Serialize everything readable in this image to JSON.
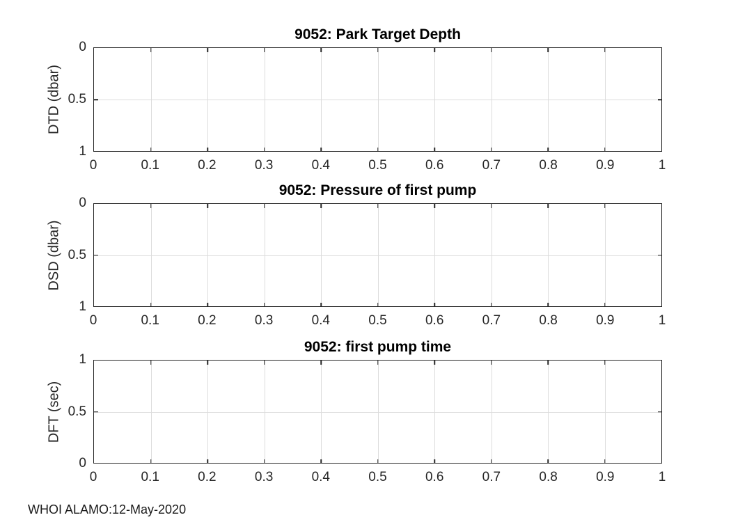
{
  "figure": {
    "footer_text": "WHOI ALAMO:12-May-2020",
    "colors": {
      "background": "#ffffff",
      "axis": "#262626",
      "grid": "#dcdcdc",
      "title": "#000000"
    }
  },
  "chart_data": [
    {
      "type": "line",
      "title": "9052: Park Target Depth",
      "xlabel": "",
      "ylabel": "DTD (dbar)",
      "xlim": [
        0,
        1
      ],
      "ylim": [
        0,
        1
      ],
      "y_direction": "reverse",
      "grid": true,
      "legend": null,
      "xticks": [
        0,
        0.1,
        0.2,
        0.3,
        0.4,
        0.5,
        0.6,
        0.7,
        0.8,
        0.9,
        1
      ],
      "xtick_labels": [
        "0",
        "0.1",
        "0.2",
        "0.3",
        "0.4",
        "0.5",
        "0.6",
        "0.7",
        "0.8",
        "0.9",
        "1"
      ],
      "yticks": [
        0,
        0.5,
        1
      ],
      "ytick_labels": [
        "0",
        "0.5",
        "1"
      ],
      "series": []
    },
    {
      "type": "line",
      "title": "9052: Pressure of first pump",
      "xlabel": "",
      "ylabel": "DSD (dbar)",
      "xlim": [
        0,
        1
      ],
      "ylim": [
        0,
        1
      ],
      "y_direction": "reverse",
      "grid": true,
      "legend": null,
      "xticks": [
        0,
        0.1,
        0.2,
        0.3,
        0.4,
        0.5,
        0.6,
        0.7,
        0.8,
        0.9,
        1
      ],
      "xtick_labels": [
        "0",
        "0.1",
        "0.2",
        "0.3",
        "0.4",
        "0.5",
        "0.6",
        "0.7",
        "0.8",
        "0.9",
        "1"
      ],
      "yticks": [
        0,
        0.5,
        1
      ],
      "ytick_labels": [
        "0",
        "0.5",
        "1"
      ],
      "series": []
    },
    {
      "type": "line",
      "title": "9052: first pump time",
      "xlabel": "",
      "ylabel": "DFT (sec)",
      "xlim": [
        0,
        1
      ],
      "ylim": [
        0,
        1
      ],
      "y_direction": "normal",
      "grid": true,
      "legend": null,
      "xticks": [
        0,
        0.1,
        0.2,
        0.3,
        0.4,
        0.5,
        0.6,
        0.7,
        0.8,
        0.9,
        1
      ],
      "xtick_labels": [
        "0",
        "0.1",
        "0.2",
        "0.3",
        "0.4",
        "0.5",
        "0.6",
        "0.7",
        "0.8",
        "0.9",
        "1"
      ],
      "yticks": [
        0,
        0.5,
        1
      ],
      "ytick_labels": [
        "0",
        "0.5",
        "1"
      ],
      "series": []
    }
  ]
}
